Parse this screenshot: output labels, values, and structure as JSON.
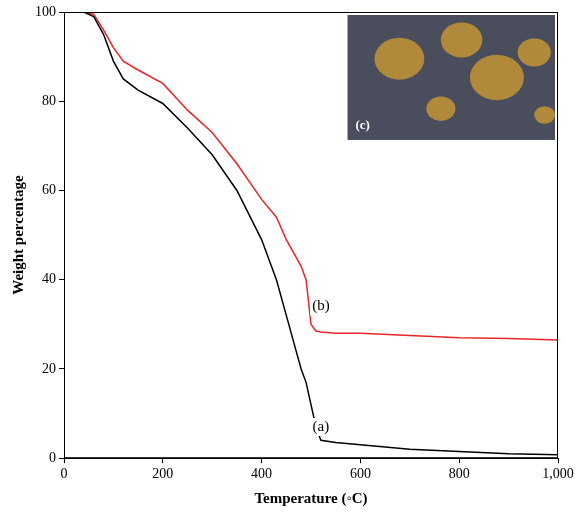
{
  "chart_data": {
    "type": "line",
    "xlabel": "Temperature (◦C)",
    "ylabel": "Weight percentage",
    "x": [
      40,
      60,
      80,
      100,
      120,
      150,
      200,
      250,
      300,
      350,
      400,
      430,
      450,
      470,
      480,
      490,
      500,
      510,
      520,
      550,
      600,
      700,
      800,
      900,
      1000
    ],
    "series": [
      {
        "name": "(a)",
        "color": "#000000",
        "values": [
          100,
          99,
          95,
          89,
          85,
          82.5,
          79.5,
          74,
          68,
          60,
          49,
          40,
          32,
          24,
          20,
          17,
          12,
          7,
          4,
          3.5,
          3,
          2,
          1.5,
          1,
          0.8
        ]
      },
      {
        "name": "(b)",
        "color": "#e8262a",
        "values": [
          100,
          99.5,
          96,
          92,
          89,
          87,
          84,
          78,
          73,
          66,
          58,
          54,
          49,
          45,
          43,
          40,
          30,
          28.5,
          28.3,
          28,
          28,
          27.5,
          27,
          26.8,
          26.5
        ]
      }
    ],
    "annotations": [
      {
        "text": "(a)",
        "x": 520,
        "y": 7
      },
      {
        "text": "(b)",
        "x": 520,
        "y": 34
      },
      {
        "text": "(c)"
      }
    ],
    "xlim": [
      0,
      1000
    ],
    "xticks": [
      0,
      200,
      400,
      600,
      800,
      1000
    ],
    "ylim": [
      0,
      100
    ],
    "yticks": [
      0,
      20,
      40,
      60,
      80,
      100
    ],
    "grid": false
  }
}
